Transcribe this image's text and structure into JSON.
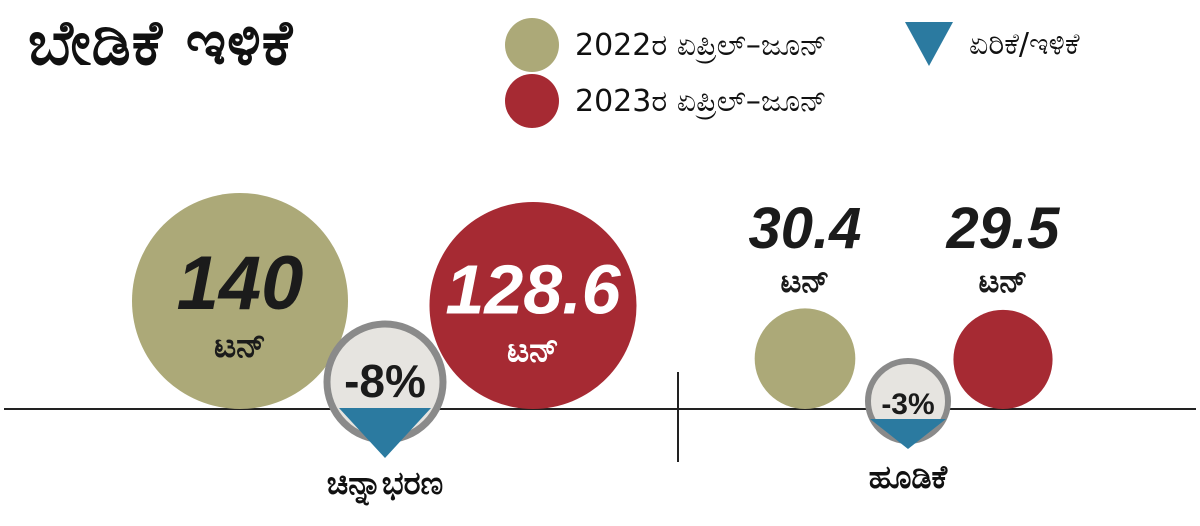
{
  "title": "ಬೇಡಿಕೆ ಇಳಿಕೆ",
  "legend": {
    "series_2022": "2022ರ ಏಪ್ರಿಲ್‌–ಜೂನ್‌",
    "series_2023": "2023ರ ಏಪ್ರಿಲ್‌–ಜೂನ್‌",
    "change": "ಏರಿಕೆ/ಇಳಿಕೆ"
  },
  "colors": {
    "series_2022": "#aca978",
    "series_2023": "#a62a33",
    "change_marker": "#2b7aa0",
    "change_badge_bg": "#e6e4e0",
    "change_badge_border": "#8a8a8a"
  },
  "chart_data": {
    "type": "bubble",
    "unit": "ಟನ್‌",
    "categories": [
      "ಚಿನ್ನಾಭರಣ",
      "ಹೂಡಿಕೆ"
    ],
    "series": [
      {
        "name": "2022ರ ಏಪ್ರಿಲ್‌–ಜೂನ್‌",
        "values": [
          140,
          30.4
        ]
      },
      {
        "name": "2023ರ ಏಪ್ರಿಲ್‌–ಜೂನ್‌",
        "values": [
          128.6,
          29.5
        ]
      }
    ],
    "value_labels": [
      [
        "140",
        "30.4"
      ],
      [
        "128.6",
        "29.5"
      ]
    ],
    "change_percent": [
      "-8%",
      "-3%"
    ],
    "change_values": [
      -8,
      -3
    ]
  }
}
